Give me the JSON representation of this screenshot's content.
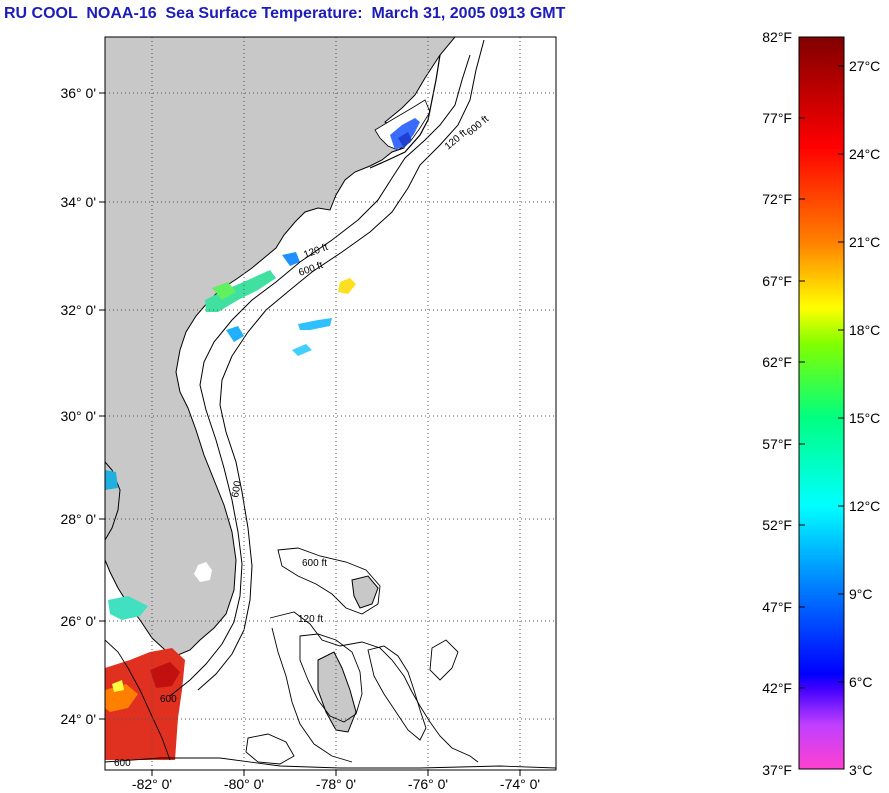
{
  "title": "RU COOL  NOAA-16  Sea Surface Temperature:  March 31, 2005 0913 GMT",
  "map": {
    "lat_labels": [
      "36° 0'",
      "34° 0'",
      "32° 0'",
      "30° 0'",
      "28° 0'",
      "26° 0'",
      "24° 0'"
    ],
    "lon_labels": [
      "-82° 0'",
      "-80° 0'",
      "-78° 0'",
      "-76° 0'",
      "-74° 0'"
    ],
    "contour_labels": [
      "120 ft",
      "600 ft",
      "120 ft",
      "600 ft",
      "600",
      "600 ft",
      "120 ft",
      "600",
      "600"
    ],
    "land_color": "#c8c8c8",
    "ocean_color": "#ffffff"
  },
  "colorbar": {
    "f_labels": [
      "82°F",
      "77°F",
      "72°F",
      "67°F",
      "62°F",
      "57°F",
      "52°F",
      "47°F",
      "42°F",
      "37°F"
    ],
    "c_labels": [
      "27°C",
      "24°C",
      "21°C",
      "18°C",
      "15°C",
      "12°C",
      "9°C",
      "6°C",
      "3°C"
    ],
    "colors": [
      "#800000",
      "#ff0000",
      "#ff8000",
      "#ffff00",
      "#80ff00",
      "#00ff80",
      "#00ffff",
      "#0080ff",
      "#0000ff",
      "#8000ff",
      "#ff40ff"
    ]
  }
}
